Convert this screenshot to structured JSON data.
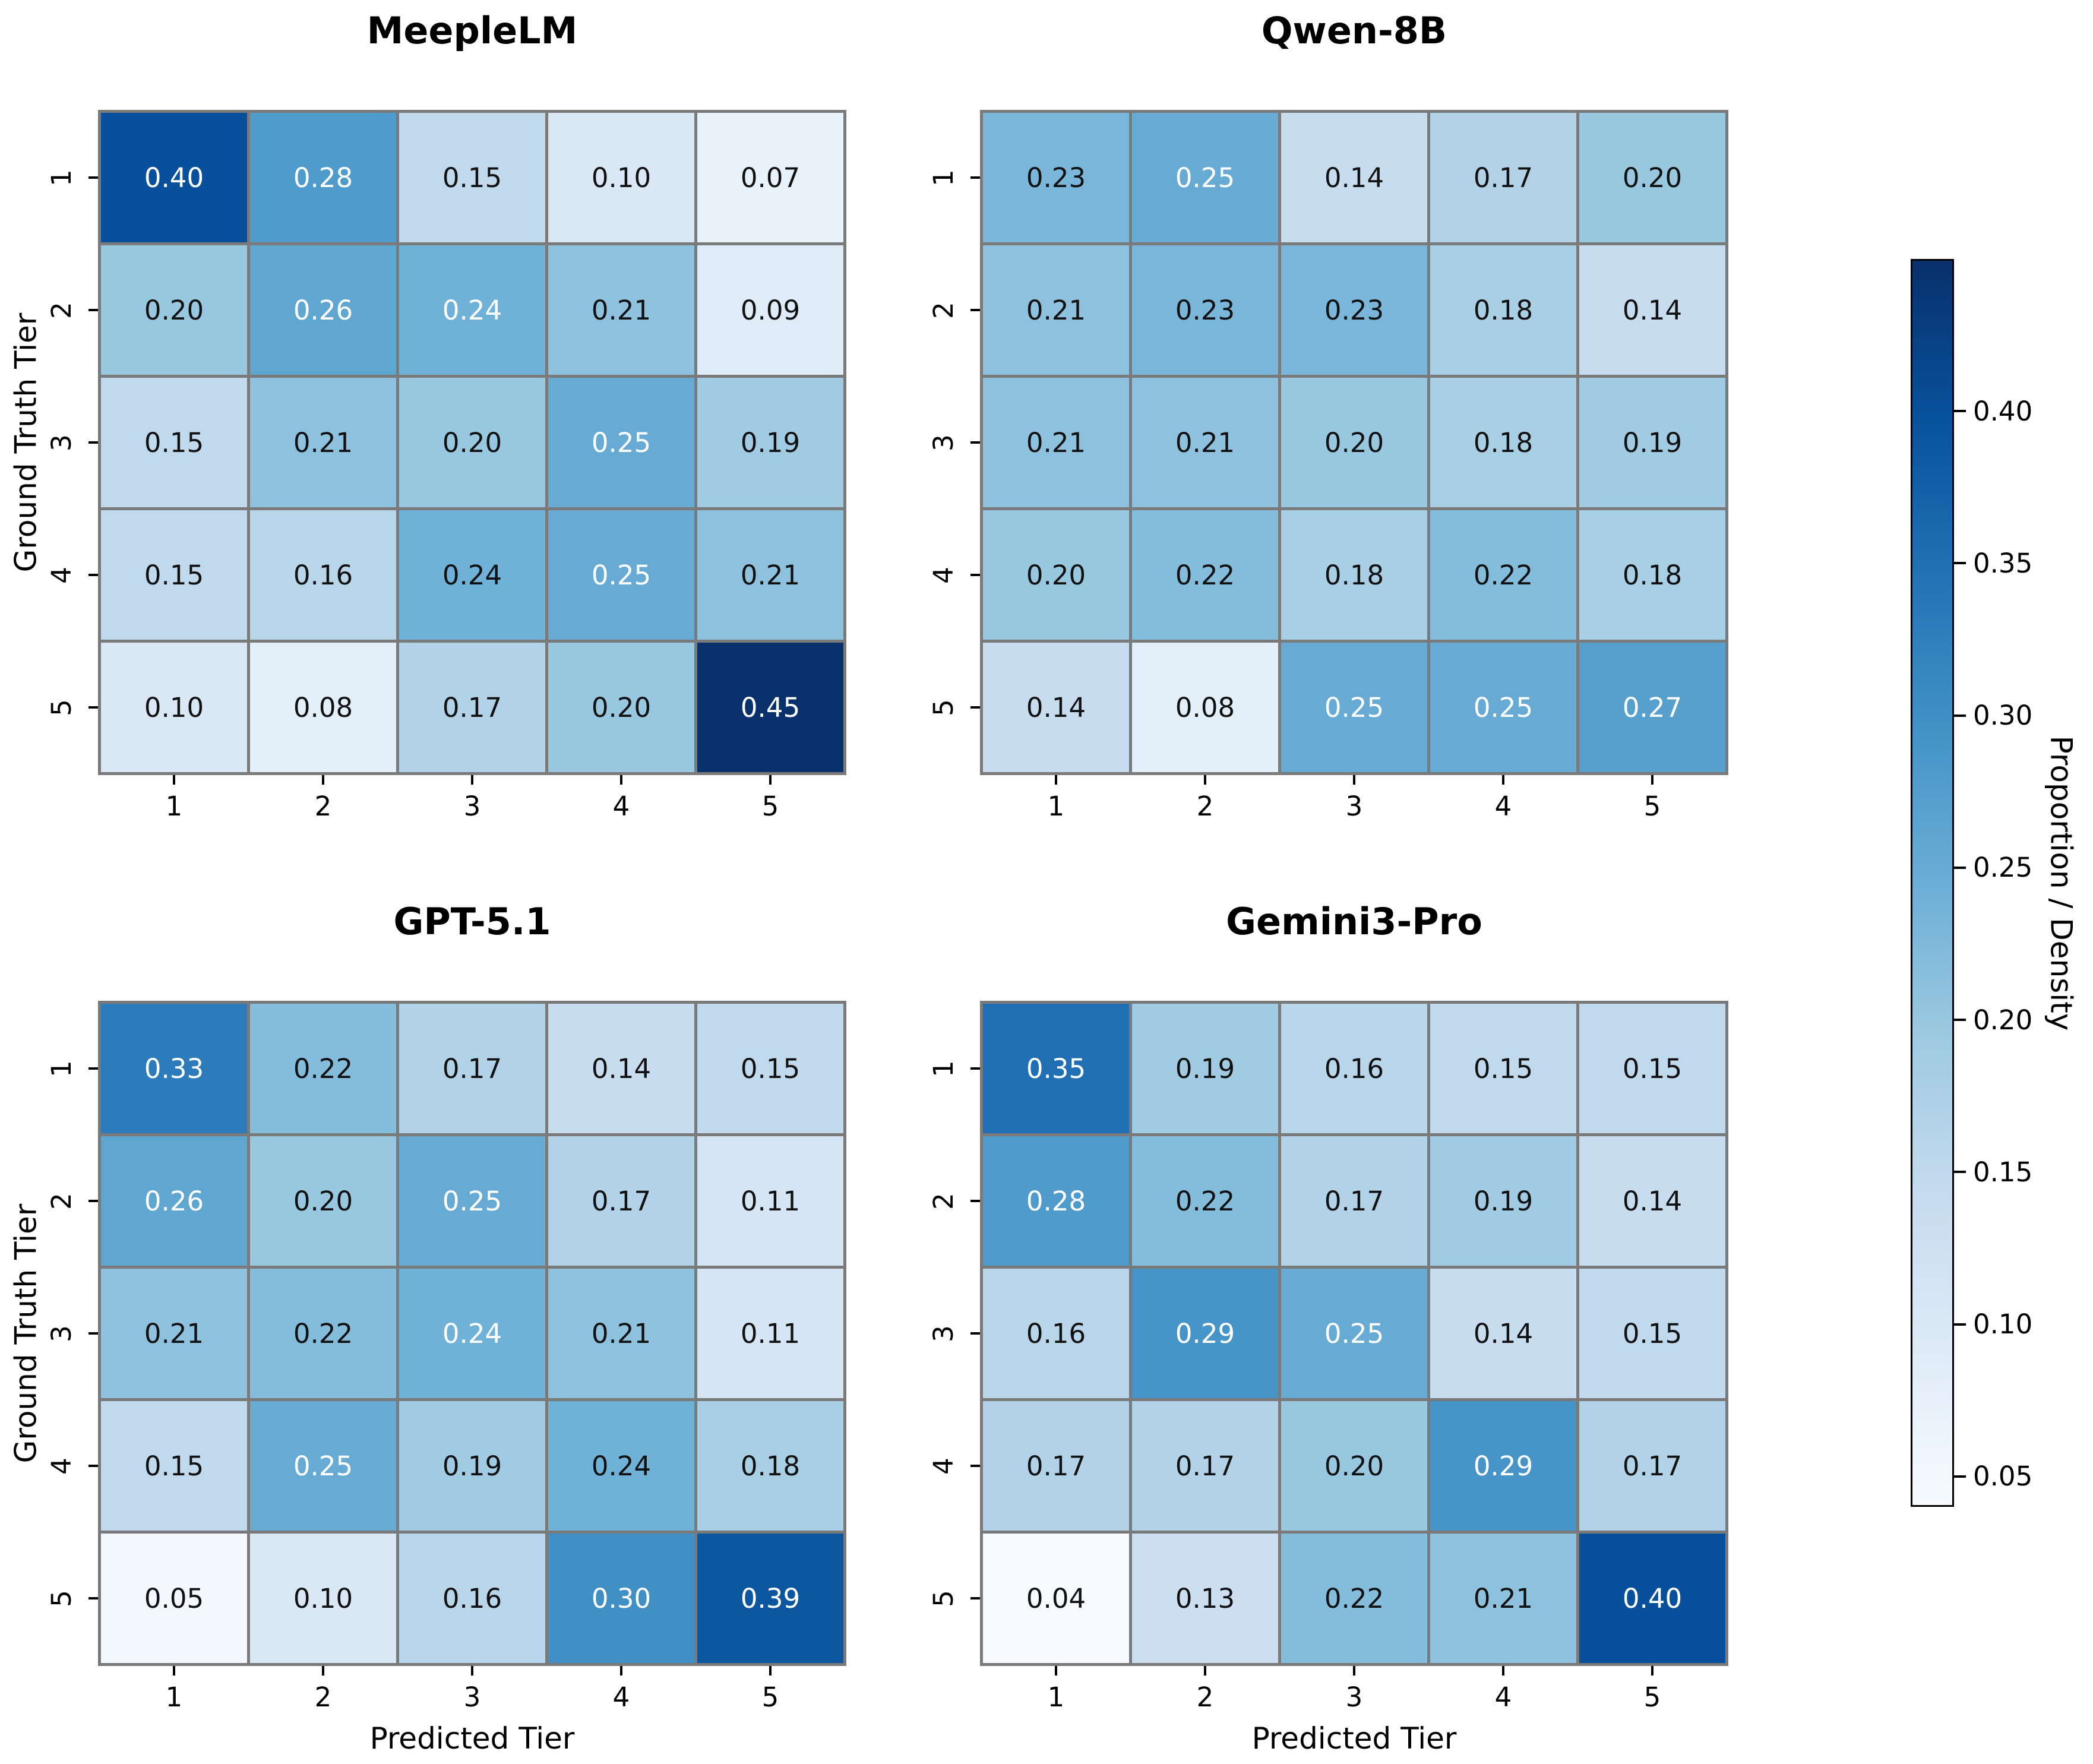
{
  "chart_data": {
    "type": "heatmap",
    "layout": {
      "grid": "2x2 panels",
      "shared_colorbar": true,
      "colorbar_position": "right",
      "gridlines": true
    },
    "xlabel": "Predicted Tier",
    "ylabel": "Ground Truth Tier",
    "x_ticklabels": [
      "1",
      "2",
      "3",
      "4",
      "5"
    ],
    "y_ticklabels": [
      "1",
      "2",
      "3",
      "4",
      "5"
    ],
    "colormap": "Blues",
    "vmin": 0.04,
    "vmax": 0.45,
    "cell_value_format": "two_decimals",
    "colorbar": {
      "label": "Proportion / Density",
      "tick_values": [
        0.4,
        0.35,
        0.3,
        0.25,
        0.2,
        0.15,
        0.1,
        0.05
      ],
      "tick_labels": [
        "0.40",
        "0.35",
        "0.30",
        "0.25",
        "0.20",
        "0.15",
        "0.10",
        "0.05"
      ]
    },
    "panels": [
      {
        "title": "MeepleLM",
        "rows": [
          [
            0.4,
            0.28,
            0.15,
            0.1,
            0.07
          ],
          [
            0.2,
            0.26,
            0.24,
            0.21,
            0.09
          ],
          [
            0.15,
            0.21,
            0.2,
            0.25,
            0.19
          ],
          [
            0.15,
            0.16,
            0.24,
            0.25,
            0.21
          ],
          [
            0.1,
            0.08,
            0.17,
            0.2,
            0.45
          ]
        ],
        "white_text_cells": [
          [
            0,
            0
          ],
          [
            0,
            1
          ],
          [
            1,
            1
          ],
          [
            1,
            2
          ],
          [
            2,
            3
          ],
          [
            3,
            3
          ],
          [
            4,
            4
          ]
        ]
      },
      {
        "title": "Qwen-8B",
        "rows": [
          [
            0.23,
            0.25,
            0.14,
            0.17,
            0.2
          ],
          [
            0.21,
            0.23,
            0.23,
            0.18,
            0.14
          ],
          [
            0.21,
            0.21,
            0.2,
            0.18,
            0.19
          ],
          [
            0.2,
            0.22,
            0.18,
            0.22,
            0.18
          ],
          [
            0.14,
            0.08,
            0.25,
            0.25,
            0.27
          ]
        ],
        "white_text_cells": [
          [
            0,
            1
          ],
          [
            4,
            2
          ],
          [
            4,
            3
          ],
          [
            4,
            4
          ]
        ]
      },
      {
        "title": "GPT-5.1",
        "rows": [
          [
            0.33,
            0.22,
            0.17,
            0.14,
            0.15
          ],
          [
            0.26,
            0.2,
            0.25,
            0.17,
            0.11
          ],
          [
            0.21,
            0.22,
            0.24,
            0.21,
            0.11
          ],
          [
            0.15,
            0.25,
            0.19,
            0.24,
            0.18
          ],
          [
            0.05,
            0.1,
            0.16,
            0.3,
            0.39
          ]
        ],
        "white_text_cells": [
          [
            0,
            0
          ],
          [
            1,
            0
          ],
          [
            1,
            2
          ],
          [
            2,
            2
          ],
          [
            3,
            1
          ],
          [
            4,
            3
          ],
          [
            4,
            4
          ]
        ]
      },
      {
        "title": "Gemini3-Pro",
        "rows": [
          [
            0.35,
            0.19,
            0.16,
            0.15,
            0.15
          ],
          [
            0.28,
            0.22,
            0.17,
            0.19,
            0.14
          ],
          [
            0.16,
            0.29,
            0.25,
            0.14,
            0.15
          ],
          [
            0.17,
            0.17,
            0.2,
            0.29,
            0.17
          ],
          [
            0.04,
            0.13,
            0.22,
            0.21,
            0.4
          ]
        ],
        "white_text_cells": [
          [
            0,
            0
          ],
          [
            1,
            0
          ],
          [
            2,
            1
          ],
          [
            2,
            2
          ],
          [
            3,
            3
          ],
          [
            4,
            4
          ]
        ]
      }
    ]
  },
  "colors": {
    "background": "#ffffff",
    "grid_line": "#7a7a7a",
    "annotation_dark": "#111111",
    "annotation_light": "#ffffff",
    "tick_color": "#000000",
    "colormap_stops": [
      "#f7fbff",
      "#deebf7",
      "#c6dbef",
      "#9ecae1",
      "#6baed6",
      "#4292c6",
      "#2171b5",
      "#08519c",
      "#08306b"
    ],
    "colorbar_border": "#000000"
  }
}
